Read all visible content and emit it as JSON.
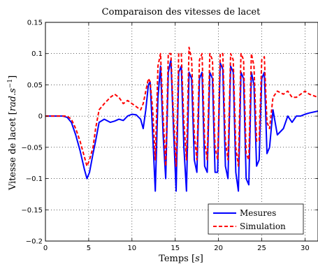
{
  "chart_data": {
    "type": "line",
    "title": "Comparaison des vitesses de lacet",
    "xlabel": "Temps [s]",
    "ylabel": "Vitesse de lacet [rad.s^-1]",
    "xlim": [
      0,
      31.5
    ],
    "ylim": [
      -0.2,
      0.15
    ],
    "xticks": [
      0,
      5,
      10,
      15,
      20,
      25,
      30
    ],
    "xtick_labels": [
      "0",
      "5",
      "10",
      "15",
      "20",
      "25",
      "30"
    ],
    "yticks": [
      -0.2,
      -0.15,
      -0.1,
      -0.05,
      0,
      0.05,
      0.1,
      0.15
    ],
    "ytick_labels": [
      "−0.2",
      "−0.15",
      "−0.1",
      "−0.05",
      "0",
      "0.05",
      "0.1",
      "0.15"
    ],
    "grid": true,
    "legend_position": "bottom-right",
    "series": [
      {
        "name": "Mesures",
        "color": "#0000ff",
        "style": "solid",
        "x": [
          0,
          1,
          2,
          2.5,
          3,
          3.5,
          4,
          4.5,
          4.8,
          5.1,
          5.5,
          5.8,
          6.2,
          6.8,
          7.5,
          8,
          8.5,
          9,
          9.5,
          10,
          10.5,
          11,
          11.3,
          11.6,
          11.9,
          12.1,
          12.4,
          12.7,
          13.0,
          13.3,
          13.6,
          13.9,
          14.2,
          14.5,
          14.8,
          15.1,
          15.4,
          15.7,
          16.0,
          16.3,
          16.6,
          16.9,
          17.2,
          17.5,
          17.8,
          18.1,
          18.4,
          18.7,
          19.0,
          19.3,
          19.6,
          19.9,
          20.2,
          20.5,
          20.8,
          21.1,
          21.4,
          21.7,
          22.0,
          22.3,
          22.6,
          22.9,
          23.2,
          23.5,
          23.8,
          24.1,
          24.4,
          24.7,
          25.0,
          25.3,
          25.6,
          25.9,
          26.3,
          26.8,
          27.5,
          28,
          28.5,
          29,
          29.5,
          30,
          30.5,
          31.5
        ],
        "y": [
          0,
          0,
          0,
          -0.002,
          -0.01,
          -0.03,
          -0.055,
          -0.085,
          -0.1,
          -0.09,
          -0.06,
          -0.04,
          -0.01,
          -0.005,
          -0.01,
          -0.008,
          -0.005,
          -0.007,
          0,
          0.003,
          0.002,
          -0.005,
          -0.02,
          0.01,
          0.05,
          0.055,
          -0.03,
          -0.12,
          0.03,
          0.08,
          -0.03,
          -0.1,
          0.07,
          0.09,
          -0.02,
          -0.12,
          0.07,
          0.08,
          -0.05,
          -0.12,
          0.07,
          0.06,
          -0.07,
          -0.09,
          0.06,
          0.07,
          -0.08,
          -0.09,
          0.07,
          0.06,
          -0.09,
          -0.09,
          0.085,
          0.075,
          -0.08,
          -0.1,
          0.08,
          0.07,
          -0.09,
          -0.12,
          0.07,
          0.06,
          -0.1,
          -0.11,
          0.07,
          0.05,
          -0.08,
          -0.07,
          0.06,
          0.07,
          -0.06,
          -0.05,
          0.01,
          -0.03,
          -0.02,
          0.0,
          -0.01,
          0.0,
          0.0,
          0.003,
          0.005,
          0.008
        ]
      },
      {
        "name": "Simulation",
        "color": "#ff0000",
        "style": "dashed",
        "x": [
          0,
          1,
          2,
          2.5,
          3,
          3.5,
          4,
          4.5,
          4.8,
          5.1,
          5.5,
          5.8,
          6.2,
          6.8,
          7.5,
          8,
          8.5,
          9,
          9.5,
          10,
          10.5,
          11,
          11.3,
          11.6,
          11.9,
          12.1,
          12.4,
          12.7,
          13.0,
          13.3,
          13.6,
          13.9,
          14.2,
          14.5,
          14.8,
          15.1,
          15.4,
          15.7,
          16.0,
          16.3,
          16.6,
          16.9,
          17.2,
          17.5,
          17.8,
          18.1,
          18.4,
          18.7,
          19.0,
          19.3,
          19.6,
          19.9,
          20.2,
          20.5,
          20.8,
          21.1,
          21.4,
          21.7,
          22.0,
          22.3,
          22.6,
          22.9,
          23.2,
          23.5,
          23.8,
          24.1,
          24.4,
          24.7,
          25.0,
          25.3,
          25.6,
          25.9,
          26.3,
          26.8,
          27.5,
          28,
          28.5,
          29,
          29.5,
          30,
          30.5,
          31.5
        ],
        "y": [
          0,
          0,
          0,
          0,
          -0.005,
          -0.02,
          -0.04,
          -0.065,
          -0.08,
          -0.07,
          -0.05,
          -0.02,
          0.01,
          0.02,
          0.03,
          0.035,
          0.03,
          0.02,
          0.025,
          0.02,
          0.015,
          0.01,
          0.02,
          0.04,
          0.06,
          0.055,
          0.01,
          -0.07,
          0.08,
          0.1,
          0.0,
          -0.08,
          0.1,
          0.1,
          0.0,
          -0.08,
          0.1,
          0.1,
          -0.01,
          -0.07,
          0.11,
          0.09,
          -0.03,
          -0.07,
          0.09,
          0.1,
          -0.04,
          -0.07,
          0.1,
          0.09,
          -0.05,
          -0.07,
          0.1,
          0.1,
          -0.04,
          -0.07,
          0.1,
          0.09,
          -0.05,
          -0.08,
          0.1,
          0.09,
          -0.06,
          -0.07,
          0.1,
          0.08,
          -0.04,
          -0.04,
          0.09,
          0.095,
          -0.01,
          -0.02,
          0.03,
          0.04,
          0.035,
          0.04,
          0.03,
          0.03,
          0.035,
          0.04,
          0.035,
          0.03
        ]
      }
    ]
  }
}
